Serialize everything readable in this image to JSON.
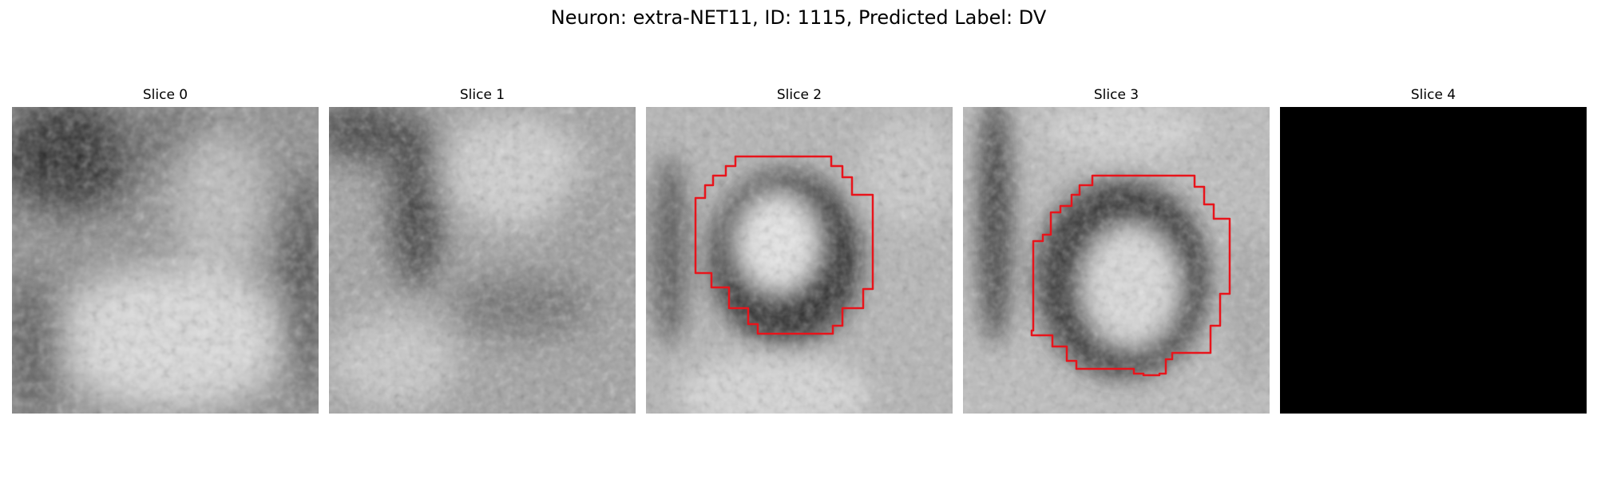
{
  "figure": {
    "title": "Neuron: extra-NET11, ID: 1115, Predicted Label: DV"
  },
  "panels": [
    {
      "title": "Slice 0",
      "contour": false,
      "blank": false
    },
    {
      "title": "Slice 1",
      "contour": false,
      "blank": false
    },
    {
      "title": "Slice 2",
      "contour": true,
      "blank": false
    },
    {
      "title": "Slice 3",
      "contour": true,
      "blank": false
    },
    {
      "title": "Slice 4",
      "contour": false,
      "blank": true
    }
  ],
  "colors": {
    "contour": "#e8141b",
    "background": "#ffffff",
    "empty_slice": "#000000"
  }
}
